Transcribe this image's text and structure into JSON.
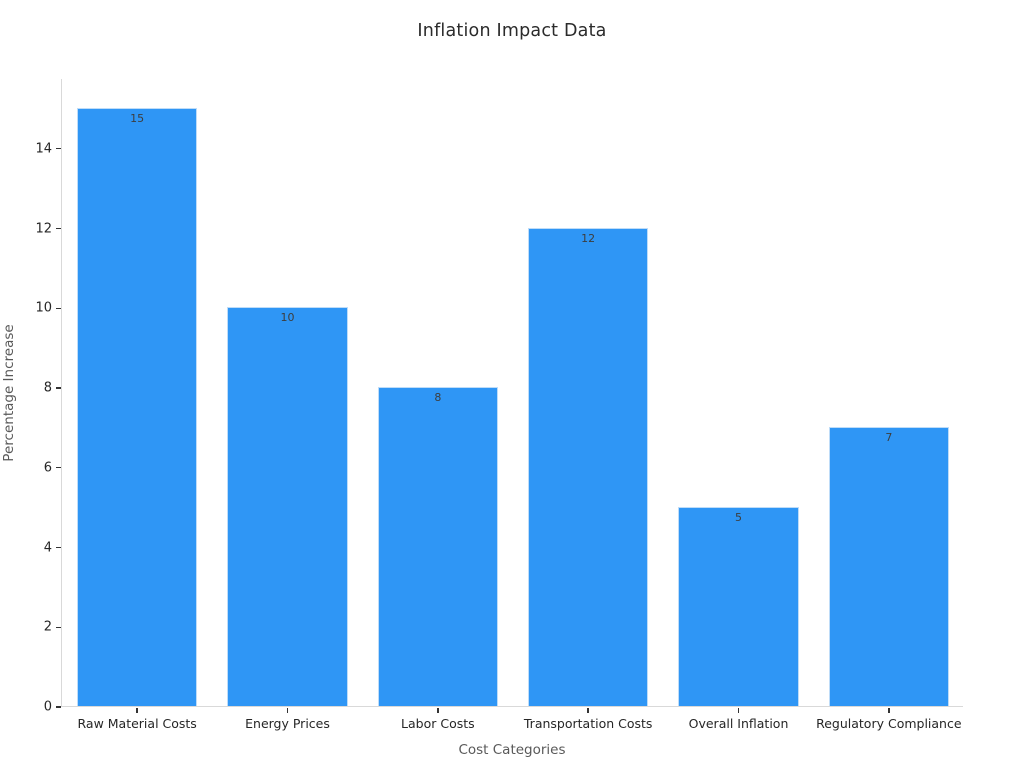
{
  "chart_data": {
    "type": "bar",
    "title": "Inflation Impact Data",
    "xlabel": "Cost Categories",
    "ylabel": "Percentage Increase",
    "categories": [
      "Raw Material Costs",
      "Energy Prices",
      "Labor Costs",
      "Transportation Costs",
      "Overall Inflation",
      "Regulatory Compliance"
    ],
    "values": [
      15,
      10,
      8,
      12,
      5,
      7
    ],
    "bar_labels": [
      "15",
      "10",
      "8",
      "12",
      "5",
      "7"
    ],
    "yticks": [
      0,
      2,
      4,
      6,
      8,
      10,
      12,
      14
    ],
    "ylim": [
      0,
      15.75
    ],
    "grid": false,
    "legend": null,
    "bar_label_position": "inside-top",
    "colors": {
      "bar_fill": "#2f96f5",
      "bar_edge": "#bedcf8",
      "axis_spine": "#d9d9d9",
      "tick_mark": "#333333",
      "tick_text": "#262626",
      "axis_title_text": "#595959",
      "title_text": "#2b2b2b",
      "bar_value_text": "#3d3d3d",
      "background": "#ffffff"
    }
  }
}
